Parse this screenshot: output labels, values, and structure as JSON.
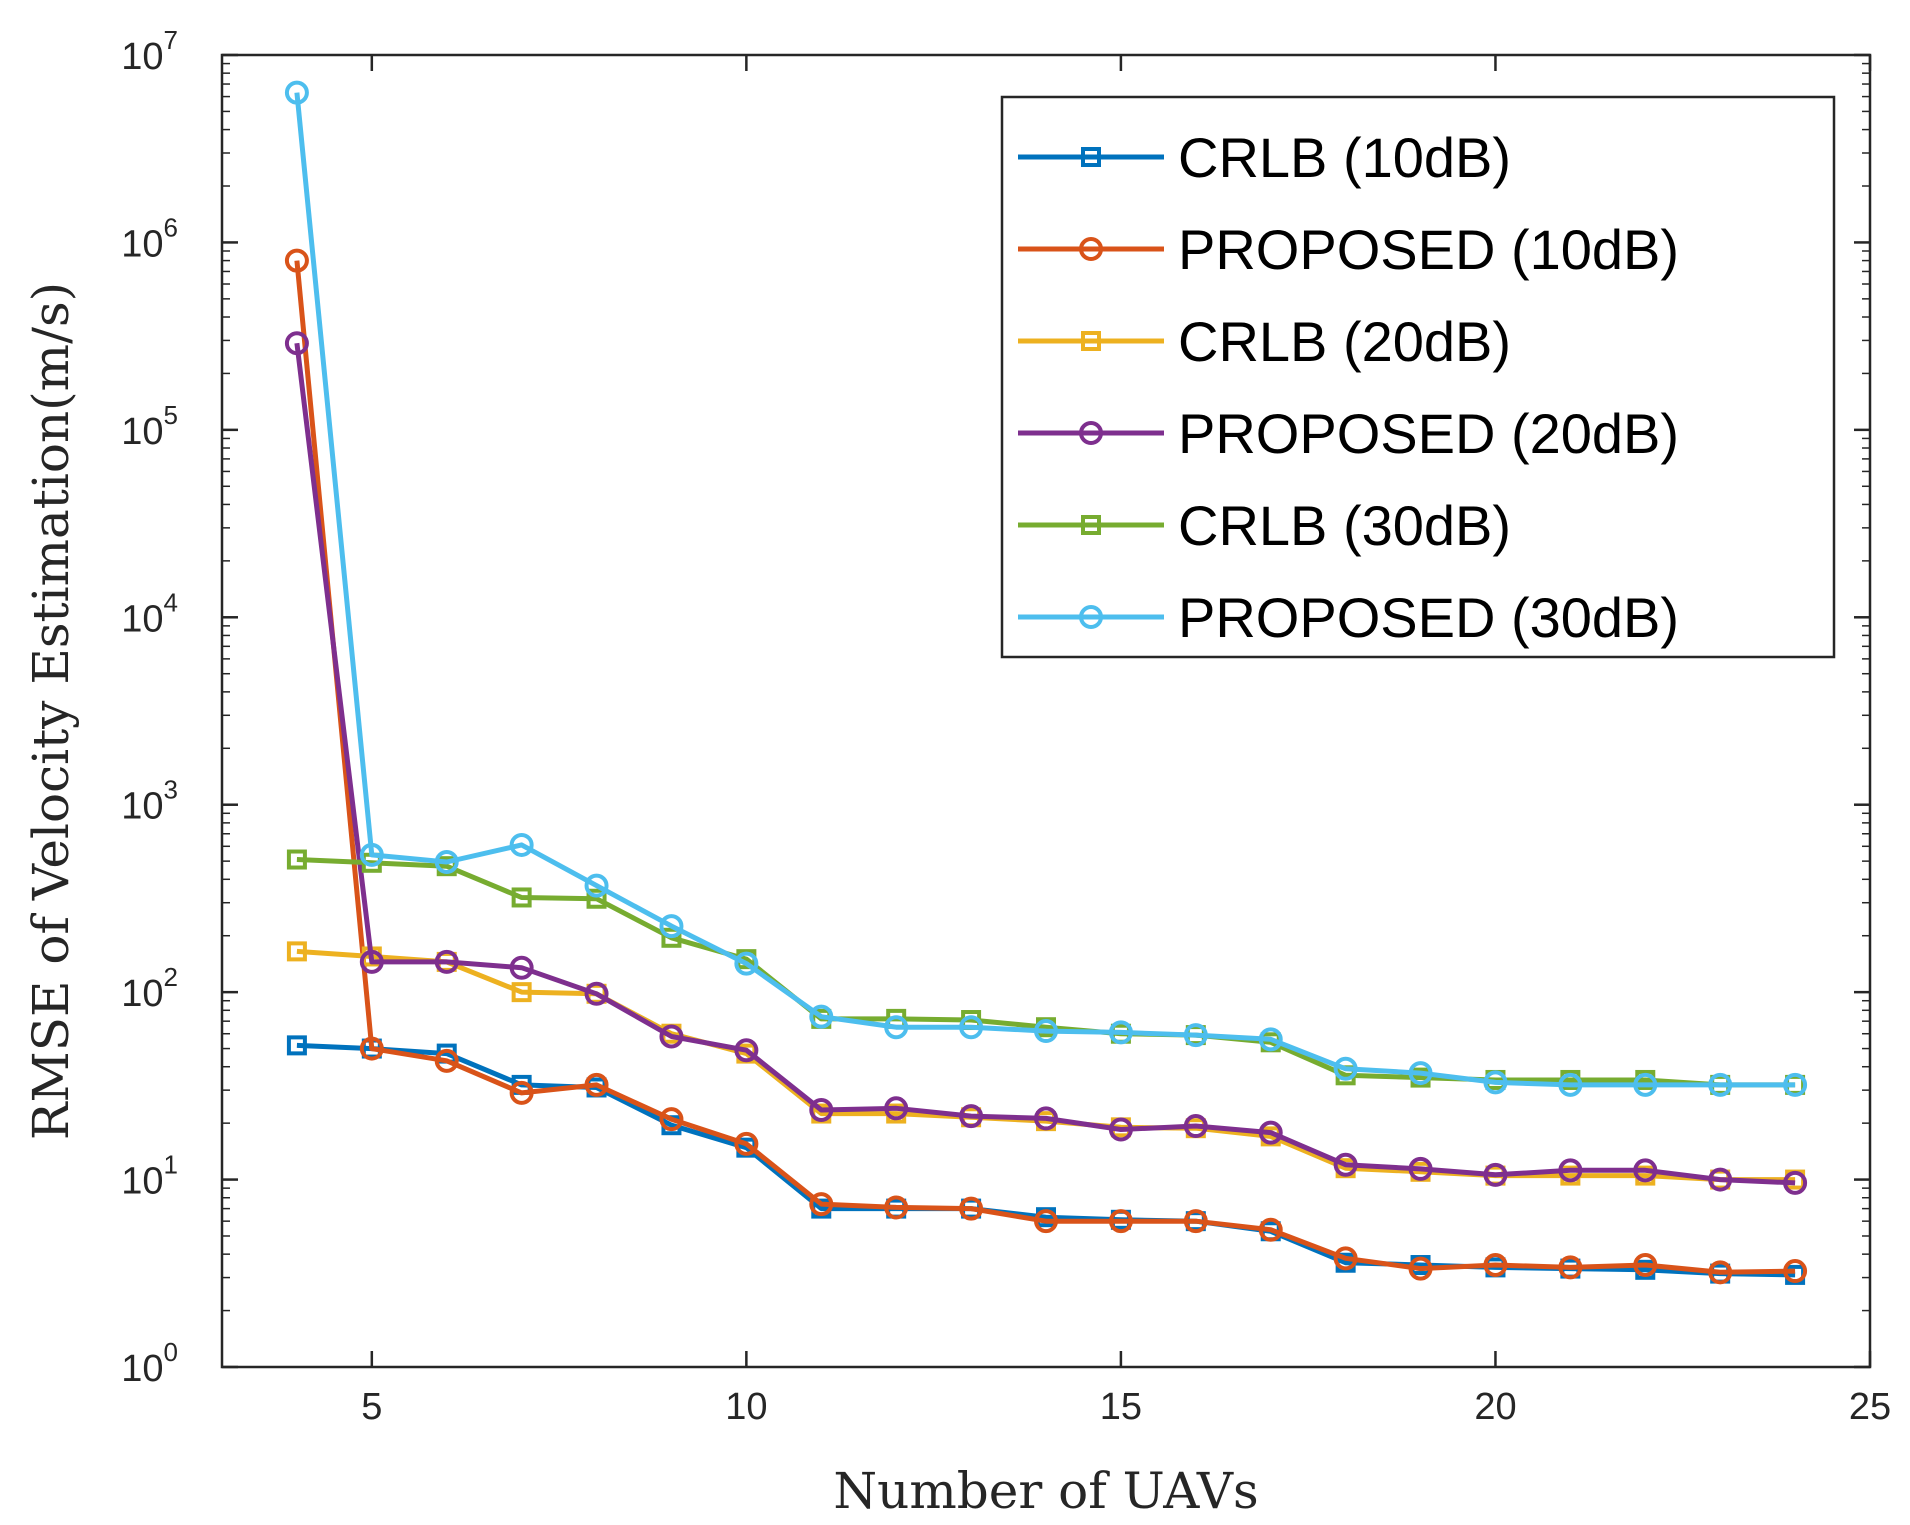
{
  "chart_data": {
    "type": "line",
    "xlabel": "Number of UAVs",
    "ylabel": "RMSE of Velocity Estimation(m/s)",
    "xlim": [
      3,
      25
    ],
    "ylim": [
      1,
      10000000
    ],
    "yscale": "log",
    "xticks": [
      5,
      10,
      15,
      20,
      25
    ],
    "yticks": [
      {
        "value": 1,
        "base": "10",
        "exp": "0"
      },
      {
        "value": 10,
        "base": "10",
        "exp": "1"
      },
      {
        "value": 100,
        "base": "10",
        "exp": "2"
      },
      {
        "value": 1000,
        "base": "10",
        "exp": "3"
      },
      {
        "value": 10000,
        "base": "10",
        "exp": "4"
      },
      {
        "value": 100000,
        "base": "10",
        "exp": "5"
      },
      {
        "value": 1000000,
        "base": "10",
        "exp": "6"
      },
      {
        "value": 10000000,
        "base": "10",
        "exp": "7"
      }
    ],
    "grid": false,
    "legend_position": "top-right",
    "x": [
      4,
      5,
      6,
      7,
      8,
      9,
      10,
      11,
      12,
      13,
      14,
      15,
      16,
      17,
      18,
      19,
      20,
      21,
      22,
      23,
      24
    ],
    "series": [
      {
        "name": "CRLB (10dB)",
        "color": "#0072BD",
        "marker": "square",
        "values": [
          52,
          50,
          47,
          32,
          31,
          19.5,
          14.8,
          7.0,
          7.0,
          7.0,
          6.3,
          6.1,
          6.0,
          5.3,
          3.6,
          3.5,
          3.4,
          3.35,
          3.3,
          3.15,
          3.1
        ]
      },
      {
        "name": "PROPOSED (10dB)",
        "color": "#D95319",
        "marker": "circle",
        "values": [
          800000,
          50,
          43,
          29,
          32,
          21,
          15.5,
          7.4,
          7.1,
          7.0,
          6.0,
          6.0,
          6.0,
          5.4,
          3.8,
          3.35,
          3.5,
          3.4,
          3.5,
          3.2,
          3.25
        ]
      },
      {
        "name": "CRLB (20dB)",
        "color": "#EDB120",
        "marker": "square",
        "values": [
          165,
          155,
          145,
          100,
          98,
          60,
          47,
          22.5,
          22.5,
          21.5,
          20.5,
          19.0,
          18.8,
          17.0,
          11.5,
          11.0,
          10.5,
          10.5,
          10.5,
          10.0,
          10.0
        ]
      },
      {
        "name": "PROPOSED (20dB)",
        "color": "#7E2F8E",
        "marker": "circle",
        "values": [
          290000,
          145,
          145,
          135,
          98,
          58,
          49,
          23.5,
          24,
          21.8,
          21.2,
          18.5,
          19.3,
          17.8,
          12.0,
          11.4,
          10.6,
          11.2,
          11.2,
          10.0,
          9.6
        ]
      },
      {
        "name": "CRLB (30dB)",
        "color": "#77AC30",
        "marker": "square",
        "values": [
          510,
          490,
          470,
          320,
          315,
          195,
          150,
          72,
          72,
          71,
          65,
          60,
          59,
          54,
          36,
          35,
          34,
          34,
          34,
          32,
          32
        ]
      },
      {
        "name": "PROPOSED (30dB)",
        "color": "#4DBEEE",
        "marker": "circle",
        "values": [
          6300000,
          540,
          495,
          610,
          370,
          225,
          142,
          74,
          65,
          65,
          62,
          61,
          59,
          56,
          39,
          37,
          33,
          32,
          32,
          32,
          32
        ]
      }
    ]
  }
}
